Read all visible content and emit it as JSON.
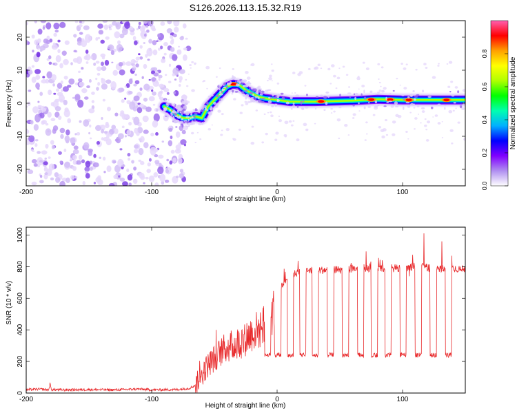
{
  "figure": {
    "title": "S126.2026.113.15.32.R19"
  },
  "chart_data": [
    {
      "type": "heatmap",
      "xlabel": "Height of straight line (km)",
      "ylabel": "Frequency (Hz)",
      "xlim": [
        -200,
        150
      ],
      "ylim": [
        -25,
        25
      ],
      "xticks": [
        -200,
        -100,
        0,
        100
      ],
      "yticks": [
        -20,
        -10,
        0,
        10,
        20
      ],
      "noise_extent_km": [
        -200,
        -75
      ],
      "ridge": [
        {
          "x": -90,
          "y": -1
        },
        {
          "x": -85,
          "y": -2
        },
        {
          "x": -80,
          "y": -3.5
        },
        {
          "x": -75,
          "y": -4.5
        },
        {
          "x": -70,
          "y": -4.5
        },
        {
          "x": -65,
          "y": -4
        },
        {
          "x": -60,
          "y": -4.5
        },
        {
          "x": -55,
          "y": -1
        },
        {
          "x": -50,
          "y": 1
        },
        {
          "x": -45,
          "y": 3
        },
        {
          "x": -40,
          "y": 5
        },
        {
          "x": -35,
          "y": 5.8
        },
        {
          "x": -30,
          "y": 5.5
        },
        {
          "x": -25,
          "y": 4
        },
        {
          "x": -20,
          "y": 3
        },
        {
          "x": -15,
          "y": 2
        },
        {
          "x": -10,
          "y": 1.5
        },
        {
          "x": 0,
          "y": 1
        },
        {
          "x": 10,
          "y": 0.5
        },
        {
          "x": 30,
          "y": 0.5
        },
        {
          "x": 60,
          "y": 0.8
        },
        {
          "x": 80,
          "y": 1.2
        },
        {
          "x": 100,
          "y": 1.0
        },
        {
          "x": 120,
          "y": 1.0
        },
        {
          "x": 150,
          "y": 1.0
        }
      ],
      "colorbar": {
        "label": "Normalized spectral amplitude",
        "range": [
          0,
          1
        ],
        "ticks": [
          "0.0",
          "0.2",
          "0.4",
          "0.6",
          "0.8"
        ],
        "tick_values": [
          0.0,
          0.2,
          0.4,
          0.6,
          0.8
        ],
        "colors": [
          "#ffffff",
          "#b08ff0",
          "#8000ff",
          "#0000ff",
          "#00b0ff",
          "#00ffb0",
          "#00ff00",
          "#b0ff00",
          "#ffff00",
          "#ffa000",
          "#ff0000",
          "#ff60b0"
        ]
      }
    },
    {
      "type": "line",
      "xlabel": "Height of straight line (km)",
      "ylabel": "SNR (10 * v/v)",
      "xlim": [
        -200,
        150
      ],
      "ylim": [
        0,
        1050
      ],
      "xticks": [
        -200,
        -100,
        0,
        100
      ],
      "yticks": [
        0,
        200,
        400,
        600,
        800,
        1000
      ],
      "color": "#e8282a",
      "series": [
        {
          "name": "SNR",
          "points": [
            [
              -200,
              20
            ],
            [
              -190,
              25
            ],
            [
              -182,
              20
            ],
            [
              -181,
              60
            ],
            [
              -180,
              22
            ],
            [
              -170,
              20
            ],
            [
              -150,
              22
            ],
            [
              -130,
              20
            ],
            [
              -110,
              25
            ],
            [
              -100,
              20
            ],
            [
              -80,
              22
            ],
            [
              -70,
              30
            ],
            [
              -65,
              50
            ],
            [
              -60,
              120
            ],
            [
              -55,
              180
            ],
            [
              -50,
              220
            ],
            [
              -45,
              260
            ],
            [
              -40,
              290
            ],
            [
              -35,
              300
            ],
            [
              -30,
              320
            ],
            [
              -25,
              350
            ],
            [
              -20,
              380
            ],
            [
              -15,
              400
            ],
            [
              -10,
              430
            ],
            [
              -5,
              480
            ],
            [
              -2,
              550
            ],
            [
              0,
              700
            ],
            [
              2,
              650
            ],
            [
              5,
              700
            ],
            [
              10,
              740
            ],
            [
              15,
              760
            ],
            [
              20,
              770
            ],
            [
              30,
              775
            ],
            [
              40,
              780
            ],
            [
              50,
              780
            ],
            [
              60,
              785
            ],
            [
              70,
              790
            ],
            [
              80,
              790
            ],
            [
              90,
              795
            ],
            [
              100,
              790
            ],
            [
              110,
              800
            ],
            [
              115,
              830
            ],
            [
              120,
              790
            ],
            [
              130,
              790
            ],
            [
              140,
              785
            ],
            [
              150,
              785
            ]
          ]
        }
      ]
    }
  ]
}
